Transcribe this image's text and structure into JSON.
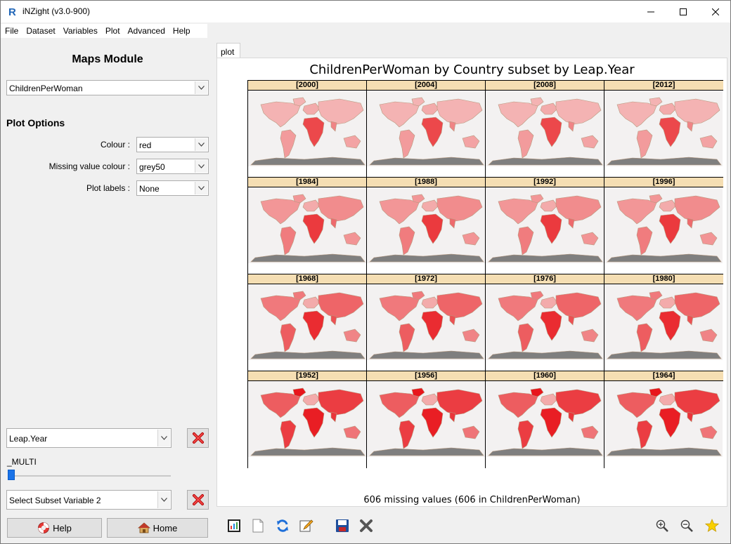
{
  "window": {
    "title": "iNZight (v3.0-900)"
  },
  "menu": [
    "File",
    "Dataset",
    "Variables",
    "Plot",
    "Advanced",
    "Help"
  ],
  "left_panel": {
    "module_title": "Maps Module",
    "variable_select": "ChildrenPerWoman",
    "plot_options_title": "Plot Options",
    "colour_label": "Colour :",
    "colour_value": "red",
    "missing_label": "Missing value colour :",
    "missing_value": "grey50",
    "plot_labels_label": "Plot labels :",
    "plot_labels_value": "None",
    "subset1_value": "Leap.Year",
    "multi_label": "_MULTI",
    "subset2_value": "Select Subset Variable 2",
    "help_label": "Help",
    "home_label": "Home"
  },
  "plot": {
    "tab_label": "plot",
    "title": "ChildrenPerWoman by Country subset by Leap.Year",
    "missing_note": "606 missing values (606 in ChildrenPerWoman)",
    "panels": [
      [
        "[2000]",
        "[2004]",
        "[2008]",
        "[2012]"
      ],
      [
        "[1984]",
        "[1988]",
        "[1992]",
        "[1996]"
      ],
      [
        "[1968]",
        "[1972]",
        "[1976]",
        "[1980]"
      ],
      [
        "[1952]",
        "[1956]",
        "[1960]",
        "[1964]"
      ]
    ]
  },
  "colors": {
    "strip": "#f5deb3",
    "missing_grey": "#7f7f7f",
    "light_fill": "#f4b3b3",
    "high_fill": "#e8161c"
  },
  "icons": {
    "toolbar": [
      "chart-icon",
      "new-document-icon",
      "refresh-icon",
      "edit-pencil-icon",
      "save-icon",
      "close-x-icon"
    ],
    "zoom": [
      "zoom-in-icon",
      "zoom-out-icon",
      "star-icon"
    ]
  }
}
